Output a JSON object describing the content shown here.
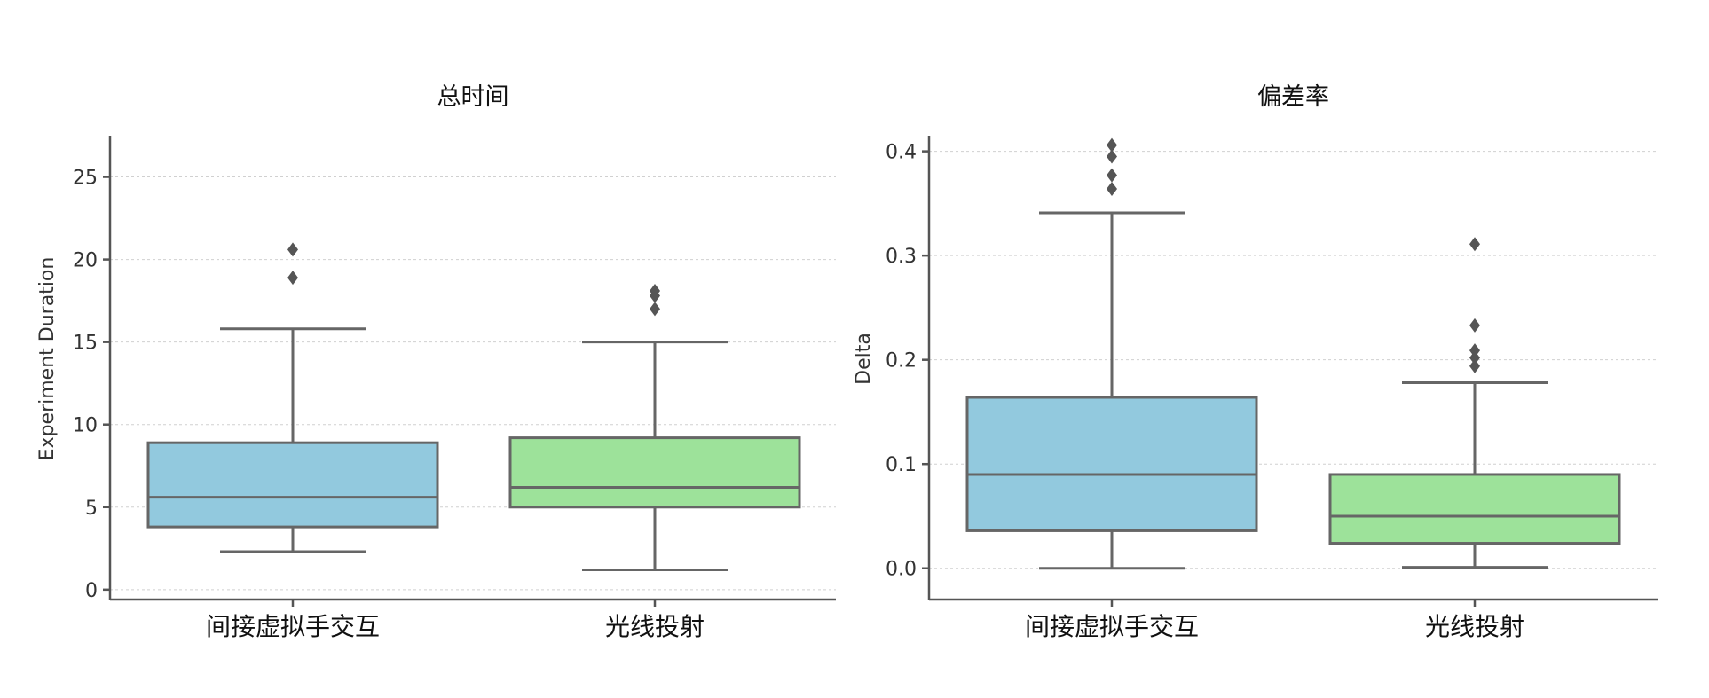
{
  "chart_data": [
    {
      "type": "box",
      "title": "总时间",
      "ylabel": "Experiment Duration",
      "xlabel": "",
      "ylim": [
        -0.6,
        27.5
      ],
      "yticks": [
        0,
        5,
        10,
        15,
        20,
        25
      ],
      "ytick_labels": [
        "0",
        "5",
        "10",
        "15",
        "20",
        "25"
      ],
      "grid": true,
      "categories": [
        "间接虚拟手交互",
        "光线投射"
      ],
      "colors": [
        "#92c9de",
        "#9de29a"
      ],
      "boxes": [
        {
          "whisker_low": 2.3,
          "q1": 3.8,
          "median": 5.6,
          "q3": 8.9,
          "whisker_high": 15.8,
          "outliers": [
            18.9,
            20.6
          ]
        },
        {
          "whisker_low": 1.2,
          "q1": 5.0,
          "median": 6.2,
          "q3": 9.2,
          "whisker_high": 15.0,
          "outliers": [
            17.0,
            17.8,
            18.1
          ]
        }
      ]
    },
    {
      "type": "box",
      "title": "偏差率",
      "ylabel": "Delta",
      "xlabel": "",
      "ylim": [
        -0.03,
        0.415
      ],
      "yticks": [
        0.0,
        0.1,
        0.2,
        0.3,
        0.4
      ],
      "ytick_labels": [
        "0.0",
        "0.1",
        "0.2",
        "0.3",
        "0.4"
      ],
      "grid": true,
      "categories": [
        "间接虚拟手交互",
        "光线投射"
      ],
      "colors": [
        "#92c9de",
        "#9de29a"
      ],
      "boxes": [
        {
          "whisker_low": 0.0,
          "q1": 0.036,
          "median": 0.09,
          "q3": 0.164,
          "whisker_high": 0.341,
          "outliers": [
            0.364,
            0.377,
            0.395,
            0.406
          ]
        },
        {
          "whisker_low": 0.001,
          "q1": 0.024,
          "median": 0.05,
          "q3": 0.09,
          "whisker_high": 0.178,
          "outliers": [
            0.194,
            0.202,
            0.209,
            0.233,
            0.311
          ]
        }
      ]
    }
  ]
}
